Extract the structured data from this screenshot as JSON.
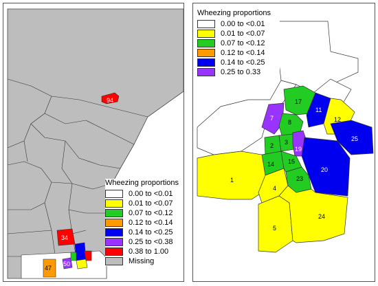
{
  "left_panel": {
    "legend": {
      "title": "Wheezing proportions",
      "items": [
        {
          "label": "0.00 to <0.01",
          "color": "#ffffff"
        },
        {
          "label": "0.01 to <0.07",
          "color": "#ffff00"
        },
        {
          "label": "0.07 to <0.12",
          "color": "#22cc22"
        },
        {
          "label": "0.12 to <0.14",
          "color": "#ff9900"
        },
        {
          "label": "0.14 to <0.25",
          "color": "#0000ee"
        },
        {
          "label": "0.25 to <0.38",
          "color": "#9933ff"
        },
        {
          "label": "0.38 to 1.00",
          "color": "#ff0000"
        },
        {
          "label": "Missing",
          "color": "#bdbdbd"
        }
      ]
    },
    "region_labels": [
      "94",
      "34",
      "47",
      "50"
    ]
  },
  "right_panel": {
    "legend": {
      "title": "Wheezing proportions",
      "items": [
        {
          "label": "0.00 to <0.01",
          "color": "#ffffff"
        },
        {
          "label": "0.01 to <0.07",
          "color": "#ffff00"
        },
        {
          "label": "0.07 to <0.12",
          "color": "#22cc22"
        },
        {
          "label": "0.12 to <0.14",
          "color": "#ff9900"
        },
        {
          "label": "0.14 to <0.25",
          "color": "#0000ee"
        },
        {
          "label": "0.25 to 0.33",
          "color": "#9933ff"
        }
      ]
    },
    "region_labels": [
      "17",
      "11",
      "7",
      "8",
      "12",
      "25",
      "2",
      "3",
      "19",
      "14",
      "15",
      "20",
      "1",
      "4",
      "23",
      "5",
      "24"
    ]
  }
}
